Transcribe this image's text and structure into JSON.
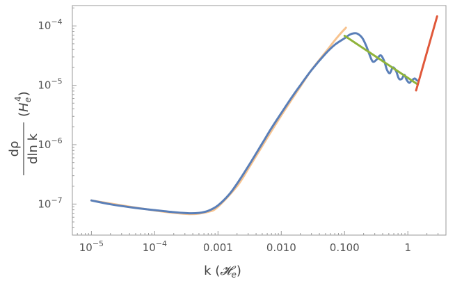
{
  "chart_data": {
    "type": "line",
    "title": "",
    "xlabel": {
      "base": "k (",
      "symbol": "𝓗",
      "subscript": "e",
      "close": ")"
    },
    "ylabel": {
      "numerator": "dρ",
      "denominator": "dln k",
      "unit_open": "(",
      "unit_symbol": "H",
      "unit_subscript": "e",
      "unit_superscript": "4",
      "unit_close": ")"
    },
    "x_scale": "log",
    "y_scale": "log",
    "xlim": [
      5e-06,
      4
    ],
    "ylim": [
      3e-08,
      0.00022
    ],
    "grid": false,
    "x_ticks": [
      {
        "value": 1e-05,
        "mantissa": "10",
        "exp": "−5"
      },
      {
        "value": 0.0001,
        "mantissa": "10",
        "exp": "−4"
      },
      {
        "value": 0.001,
        "mantissa": "0.001",
        "exp": ""
      },
      {
        "value": 0.01,
        "mantissa": "0.010",
        "exp": ""
      },
      {
        "value": 0.1,
        "mantissa": "0.100",
        "exp": ""
      },
      {
        "value": 1,
        "mantissa": "1",
        "exp": ""
      }
    ],
    "y_ticks": [
      {
        "value": 1e-07,
        "mantissa": "10",
        "exp": "−7"
      },
      {
        "value": 1e-06,
        "mantissa": "10",
        "exp": "−6"
      },
      {
        "value": 1e-05,
        "mantissa": "10",
        "exp": "−5"
      },
      {
        "value": 0.0001,
        "mantissa": "10",
        "exp": "−4"
      }
    ],
    "series": [
      {
        "color": "#5a7fb8",
        "points": [
          [
            1e-05,
            1.15e-07
          ],
          [
            2e-05,
            9.9e-08
          ],
          [
            5e-05,
            8.6e-08
          ],
          [
            0.0001,
            7.9e-08
          ],
          [
            0.0002,
            7.3e-08
          ],
          [
            0.00035,
            7e-08
          ],
          [
            0.0005,
            7.1e-08
          ],
          [
            0.0007,
            7.7e-08
          ],
          [
            0.001,
            9.5e-08
          ],
          [
            0.0015,
            1.45e-07
          ],
          [
            0.002,
            2.2e-07
          ],
          [
            0.003,
            4.3e-07
          ],
          [
            0.005,
            1.05e-06
          ],
          [
            0.007,
            1.9e-06
          ],
          [
            0.01,
            3.4e-06
          ],
          [
            0.015,
            6.5e-06
          ],
          [
            0.02,
            1e-05
          ],
          [
            0.03,
            1.8e-05
          ],
          [
            0.05,
            3.4e-05
          ],
          [
            0.07,
            4.8e-05
          ],
          [
            0.1,
            6.2e-05
          ],
          [
            0.12,
            7.1e-05
          ],
          [
            0.14,
            7.5e-05
          ],
          [
            0.16,
            7.4e-05
          ],
          [
            0.19,
            6.3e-05
          ],
          [
            0.22,
            4.6e-05
          ],
          [
            0.25,
            3.2e-05
          ],
          [
            0.28,
            2.5e-05
          ],
          [
            0.32,
            2.7e-05
          ],
          [
            0.37,
            3.2e-05
          ],
          [
            0.42,
            2.6e-05
          ],
          [
            0.47,
            1.8e-05
          ],
          [
            0.52,
            1.6e-05
          ],
          [
            0.58,
            2e-05
          ],
          [
            0.65,
            1.75e-05
          ],
          [
            0.72,
            1.3e-05
          ],
          [
            0.8,
            1.28e-05
          ],
          [
            0.88,
            1.5e-05
          ],
          [
            0.95,
            1.25e-05
          ],
          [
            1.05,
            1.1e-05
          ],
          [
            1.15,
            1.2e-05
          ],
          [
            1.28,
            1.3e-05
          ],
          [
            1.4,
            1.2e-05
          ]
        ]
      },
      {
        "color": "#f7c38f",
        "points": [
          [
            1e-05,
            1.15e-07
          ],
          [
            0.0001,
            7.8e-08
          ],
          [
            0.00035,
            6.8e-08
          ],
          [
            0.0007,
            7.4e-08
          ],
          [
            0.001,
            9e-08
          ],
          [
            0.002,
            2e-07
          ],
          [
            0.003,
            3.9e-07
          ],
          [
            0.005,
            9.5e-07
          ],
          [
            0.01,
            3.1e-06
          ],
          [
            0.02,
            9.5e-06
          ],
          [
            0.03,
            1.8e-05
          ],
          [
            0.05,
            3.6e-05
          ],
          [
            0.07,
            5.7e-05
          ],
          [
            0.09,
            7.8e-05
          ],
          [
            0.105,
            9.3e-05
          ]
        ]
      },
      {
        "color": "#8fb33a",
        "points": [
          [
            0.1,
            6.8e-05
          ],
          [
            1.4,
            1.05e-05
          ]
        ]
      },
      {
        "color": "#e0583a",
        "points": [
          [
            1.35,
            8.2e-06
          ],
          [
            2.9,
            0.000145
          ]
        ]
      }
    ]
  }
}
